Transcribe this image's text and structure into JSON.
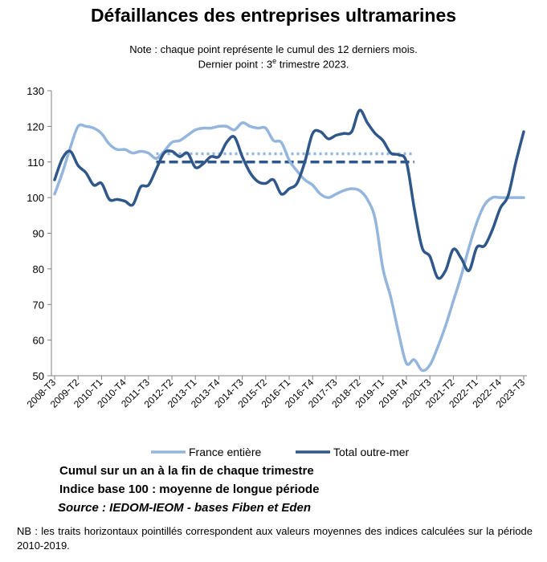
{
  "title": "Défaillances des entreprises ultramarines",
  "note_line1": "Note : chaque point représente le cumul des 12 derniers mois.",
  "note_line2_before": "Dernier point : 3",
  "note_line2_sup": "e",
  "note_line2_after": " trimestre 2023.",
  "footer_line1": "Cumul sur un an à la fin de chaque trimestre",
  "footer_line2": "Indice base 100 : moyenne de longue période",
  "source": "Source : IEDOM-IEOM - bases Fiben et Eden",
  "nb": "NB : les traits horizontaux pointillés correspondent aux valeurs moyennes des indices calculées sur la période 2010-2019.",
  "colors": {
    "france": "#94b6dd",
    "outremer": "#2f5789",
    "axis": "#808080"
  },
  "chart_data": {
    "type": "line",
    "ylim": [
      50,
      130
    ],
    "yticks": [
      50,
      60,
      70,
      80,
      90,
      100,
      110,
      120,
      130
    ],
    "x": [
      "2008-T3",
      "2008-T4",
      "2009-T1",
      "2009-T2",
      "2009-T3",
      "2009-T4",
      "2010-T1",
      "2010-T2",
      "2010-T3",
      "2010-T4",
      "2011-T1",
      "2011-T2",
      "2011-T3",
      "2011-T4",
      "2012-T1",
      "2012-T2",
      "2012-T3",
      "2012-T4",
      "2013-T1",
      "2013-T2",
      "2013-T3",
      "2013-T4",
      "2014-T1",
      "2014-T2",
      "2014-T3",
      "2014-T4",
      "2015-T1",
      "2015-T2",
      "2015-T3",
      "2015-T4",
      "2016-T1",
      "2016-T2",
      "2016-T3",
      "2016-T4",
      "2017-T1",
      "2017-T2",
      "2017-T3",
      "2017-T4",
      "2018-T1",
      "2018-T2",
      "2018-T3",
      "2018-T4",
      "2019-T1",
      "2019-T2",
      "2019-T3",
      "2019-T4",
      "2020-T1",
      "2020-T2",
      "2020-T3",
      "2020-T4",
      "2021-T1",
      "2021-T2",
      "2021-T3",
      "2021-T4",
      "2022-T1",
      "2022-T2",
      "2022-T3",
      "2022-T4",
      "2023-T1",
      "2023-T2",
      "2023-T3"
    ],
    "xtick_labels": [
      "2008-T3",
      "2009-T2",
      "2010-T1",
      "2010-T4",
      "2011-T3",
      "2012-T2",
      "2013-T1",
      "2013-T4",
      "2014-T3",
      "2015-T2",
      "2016-T1",
      "2016-T4",
      "2017-T3",
      "2018-T2",
      "2019-T1",
      "2019-T4",
      "2020-T3",
      "2021-T2",
      "2022-T1",
      "2022-T4",
      "2023-T3"
    ],
    "series": [
      {
        "name": "France entière",
        "values": [
          101,
          107,
          114,
          120,
          120,
          119.5,
          118,
          115,
          113.5,
          113.5,
          112.5,
          113,
          112.5,
          111,
          113,
          115.5,
          116,
          117.5,
          119,
          119.5,
          119.5,
          120,
          120,
          119,
          121,
          120,
          119.5,
          119.5,
          116,
          115.5,
          110.5,
          107.5,
          105,
          103.5,
          101,
          100,
          101,
          102,
          102.5,
          102,
          99.5,
          94,
          80,
          72,
          62,
          53.5,
          54.5,
          51.5,
          53,
          58,
          64,
          71,
          78,
          86,
          93,
          98,
          100,
          100,
          100,
          100,
          100
        ]
      },
      {
        "name": "Total outre-mer",
        "values": [
          105,
          111,
          113,
          109,
          107,
          103.5,
          104,
          99.5,
          99.5,
          99,
          98,
          103,
          103.5,
          108,
          112.5,
          113,
          111.5,
          112.5,
          108.5,
          109.5,
          111.5,
          111.5,
          115.5,
          117,
          111.5,
          107,
          104.5,
          104,
          105,
          101,
          102.5,
          104,
          110,
          118,
          118.5,
          116.5,
          117.5,
          118,
          118.5,
          124.5,
          121,
          118,
          116,
          112.5,
          112,
          110,
          97,
          86,
          83.5,
          77.5,
          79.5,
          85.5,
          83,
          79.5,
          86,
          86.5,
          91,
          97,
          100.5,
          110,
          118.5
        ]
      }
    ],
    "averages": [
      {
        "series": "France entière",
        "value": 112.3
      },
      {
        "series": "Total outre-mer",
        "value": 110
      }
    ],
    "legend": "bottom"
  }
}
